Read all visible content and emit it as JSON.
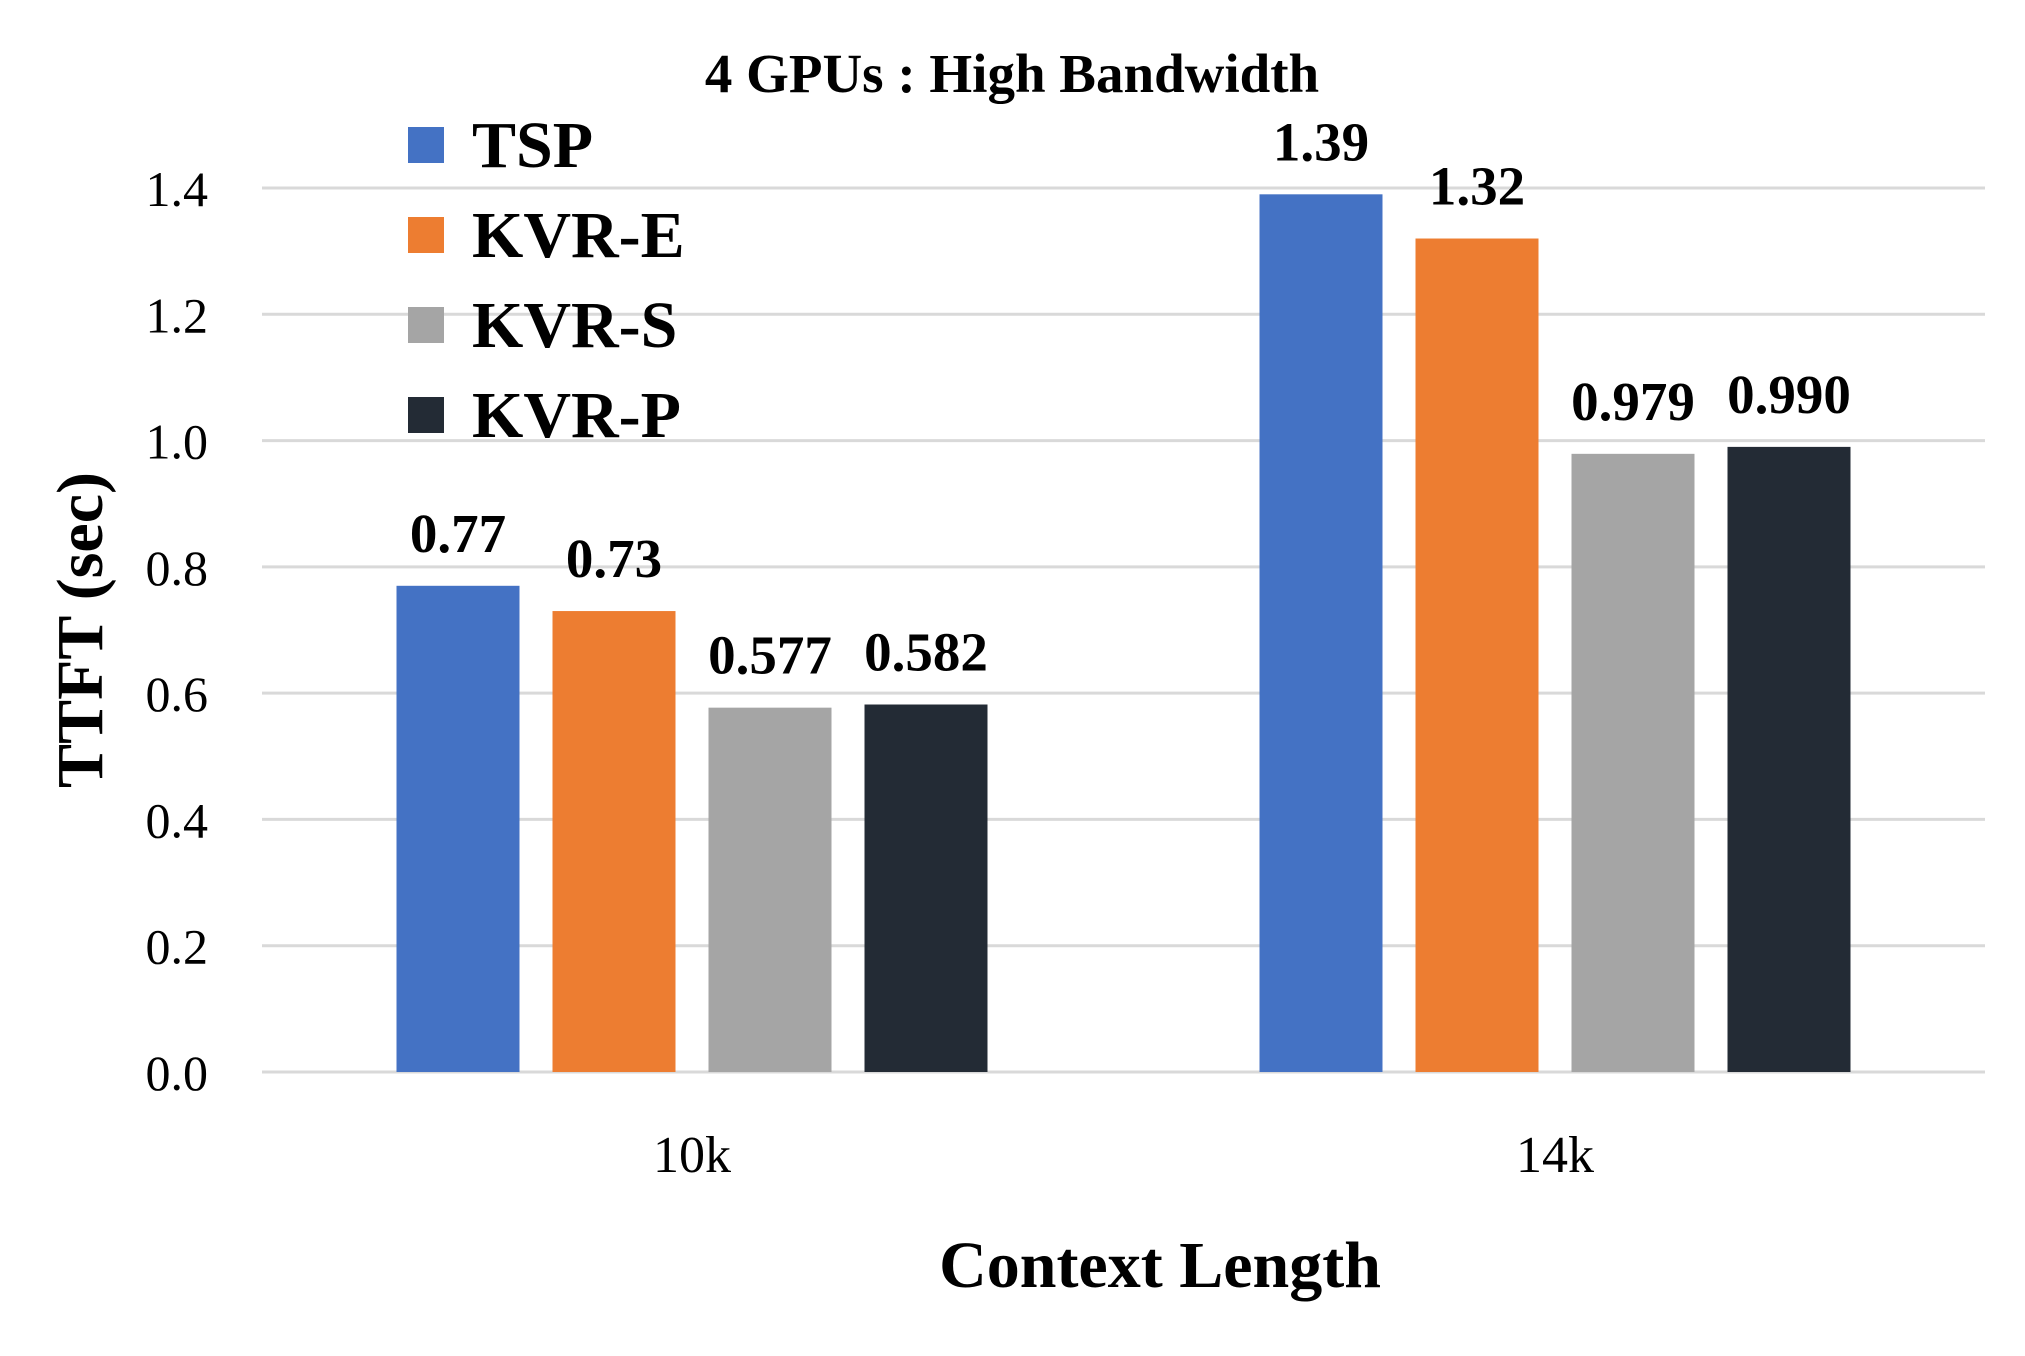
{
  "chart_data": {
    "type": "bar",
    "title": "4 GPUs : High Bandwidth",
    "xlabel": "Context Length",
    "ylabel": "TTFT (sec)",
    "categories": [
      "10k",
      "14k"
    ],
    "ylim": [
      0,
      1.4
    ],
    "yticks": [
      "0.0",
      "0.2",
      "0.4",
      "0.6",
      "0.8",
      "1.0",
      "1.2",
      "1.4"
    ],
    "grid": true,
    "legend_position": "top-left",
    "series": [
      {
        "name": "TSP",
        "color": "#4472C4",
        "values": [
          0.77,
          1.39
        ],
        "labels": [
          "0.77",
          "1.39"
        ]
      },
      {
        "name": "KVR-E",
        "color": "#ED7D31",
        "values": [
          0.73,
          1.32
        ],
        "labels": [
          "0.73",
          "1.32"
        ]
      },
      {
        "name": "KVR-S",
        "color": "#A5A5A5",
        "values": [
          0.577,
          0.979
        ],
        "labels": [
          "0.577",
          "0.979"
        ]
      },
      {
        "name": "KVR-P",
        "color": "#232B35",
        "values": [
          0.582,
          0.99
        ],
        "labels": [
          "0.582",
          "0.990"
        ]
      }
    ]
  }
}
